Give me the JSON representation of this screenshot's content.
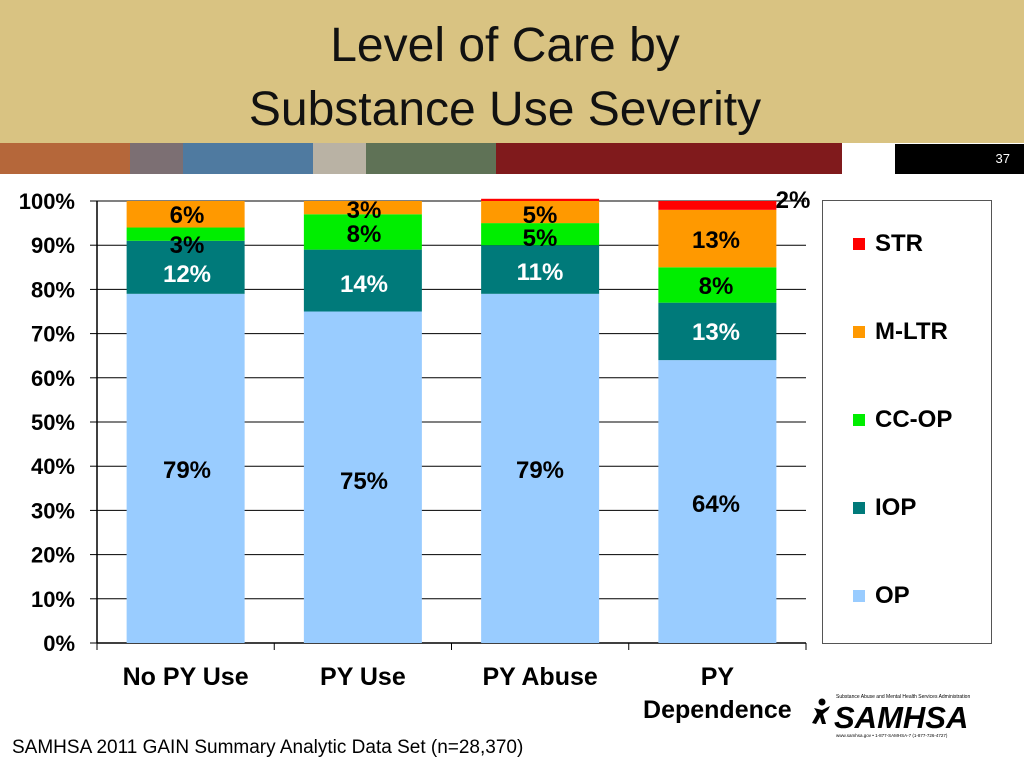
{
  "slide": {
    "title_line1": "Level of Care by",
    "title_line2": "Substance Use Severity",
    "slide_number": "37",
    "footnote": "SAMHSA 2011 GAIN Summary Analytic Data Set (n=28,370)",
    "logo": {
      "tagline": "Substance Abuse and Mental Health Services Administration",
      "wordmark": "SAMHSA",
      "contact": "www.samhsa.gov • 1-877-SAMHSA-7 (1-877-726-4727)"
    },
    "band_colors": [
      "#b5673a",
      "#7c6f73",
      "#4f7aa0",
      "#b9b2a4",
      "#5f7256",
      "#801a1c",
      "#ffffff"
    ]
  },
  "chart_data": {
    "type": "bar",
    "stacked": true,
    "percent_stacked": true,
    "categories": [
      [
        "No PY Use"
      ],
      [
        "PY Use"
      ],
      [
        "PY Abuse"
      ],
      [
        "PY",
        "Dependence"
      ]
    ],
    "series": [
      {
        "name": "OP",
        "color": "#99ccff",
        "values": [
          79,
          75,
          79,
          64
        ],
        "labels": [
          "79%",
          "75%",
          "79%",
          "64%"
        ],
        "label_color": "#000000"
      },
      {
        "name": "IOP",
        "color": "#007a7a",
        "values": [
          12,
          14,
          11,
          13
        ],
        "labels": [
          "12%",
          "14%",
          "11%",
          "13%"
        ],
        "label_color": "#ffffff"
      },
      {
        "name": "CC-OP",
        "color": "#00ee00",
        "values": [
          3,
          8,
          5,
          8
        ],
        "labels": [
          "3%",
          "8%",
          "5%",
          "8%"
        ],
        "label_color": "#000000"
      },
      {
        "name": "M-LTR",
        "color": "#ff9900",
        "values": [
          6,
          3,
          5,
          13
        ],
        "labels": [
          "6%",
          "3%",
          "5%",
          "13%"
        ],
        "label_color": "#000000"
      },
      {
        "name": "STR",
        "color": "#ff0000",
        "values": [
          0,
          0,
          0.5,
          2
        ],
        "labels": [
          "",
          "",
          "",
          "2%"
        ],
        "label_color": "#000000"
      }
    ],
    "legend_order": [
      "STR",
      "M-LTR",
      "CC-OP",
      "IOP",
      "OP"
    ],
    "y_ticks": [
      "0%",
      "10%",
      "20%",
      "30%",
      "40%",
      "50%",
      "60%",
      "70%",
      "80%",
      "90%",
      "100%"
    ],
    "ylim": [
      0,
      100
    ],
    "grid": true,
    "legend_position": "right"
  }
}
